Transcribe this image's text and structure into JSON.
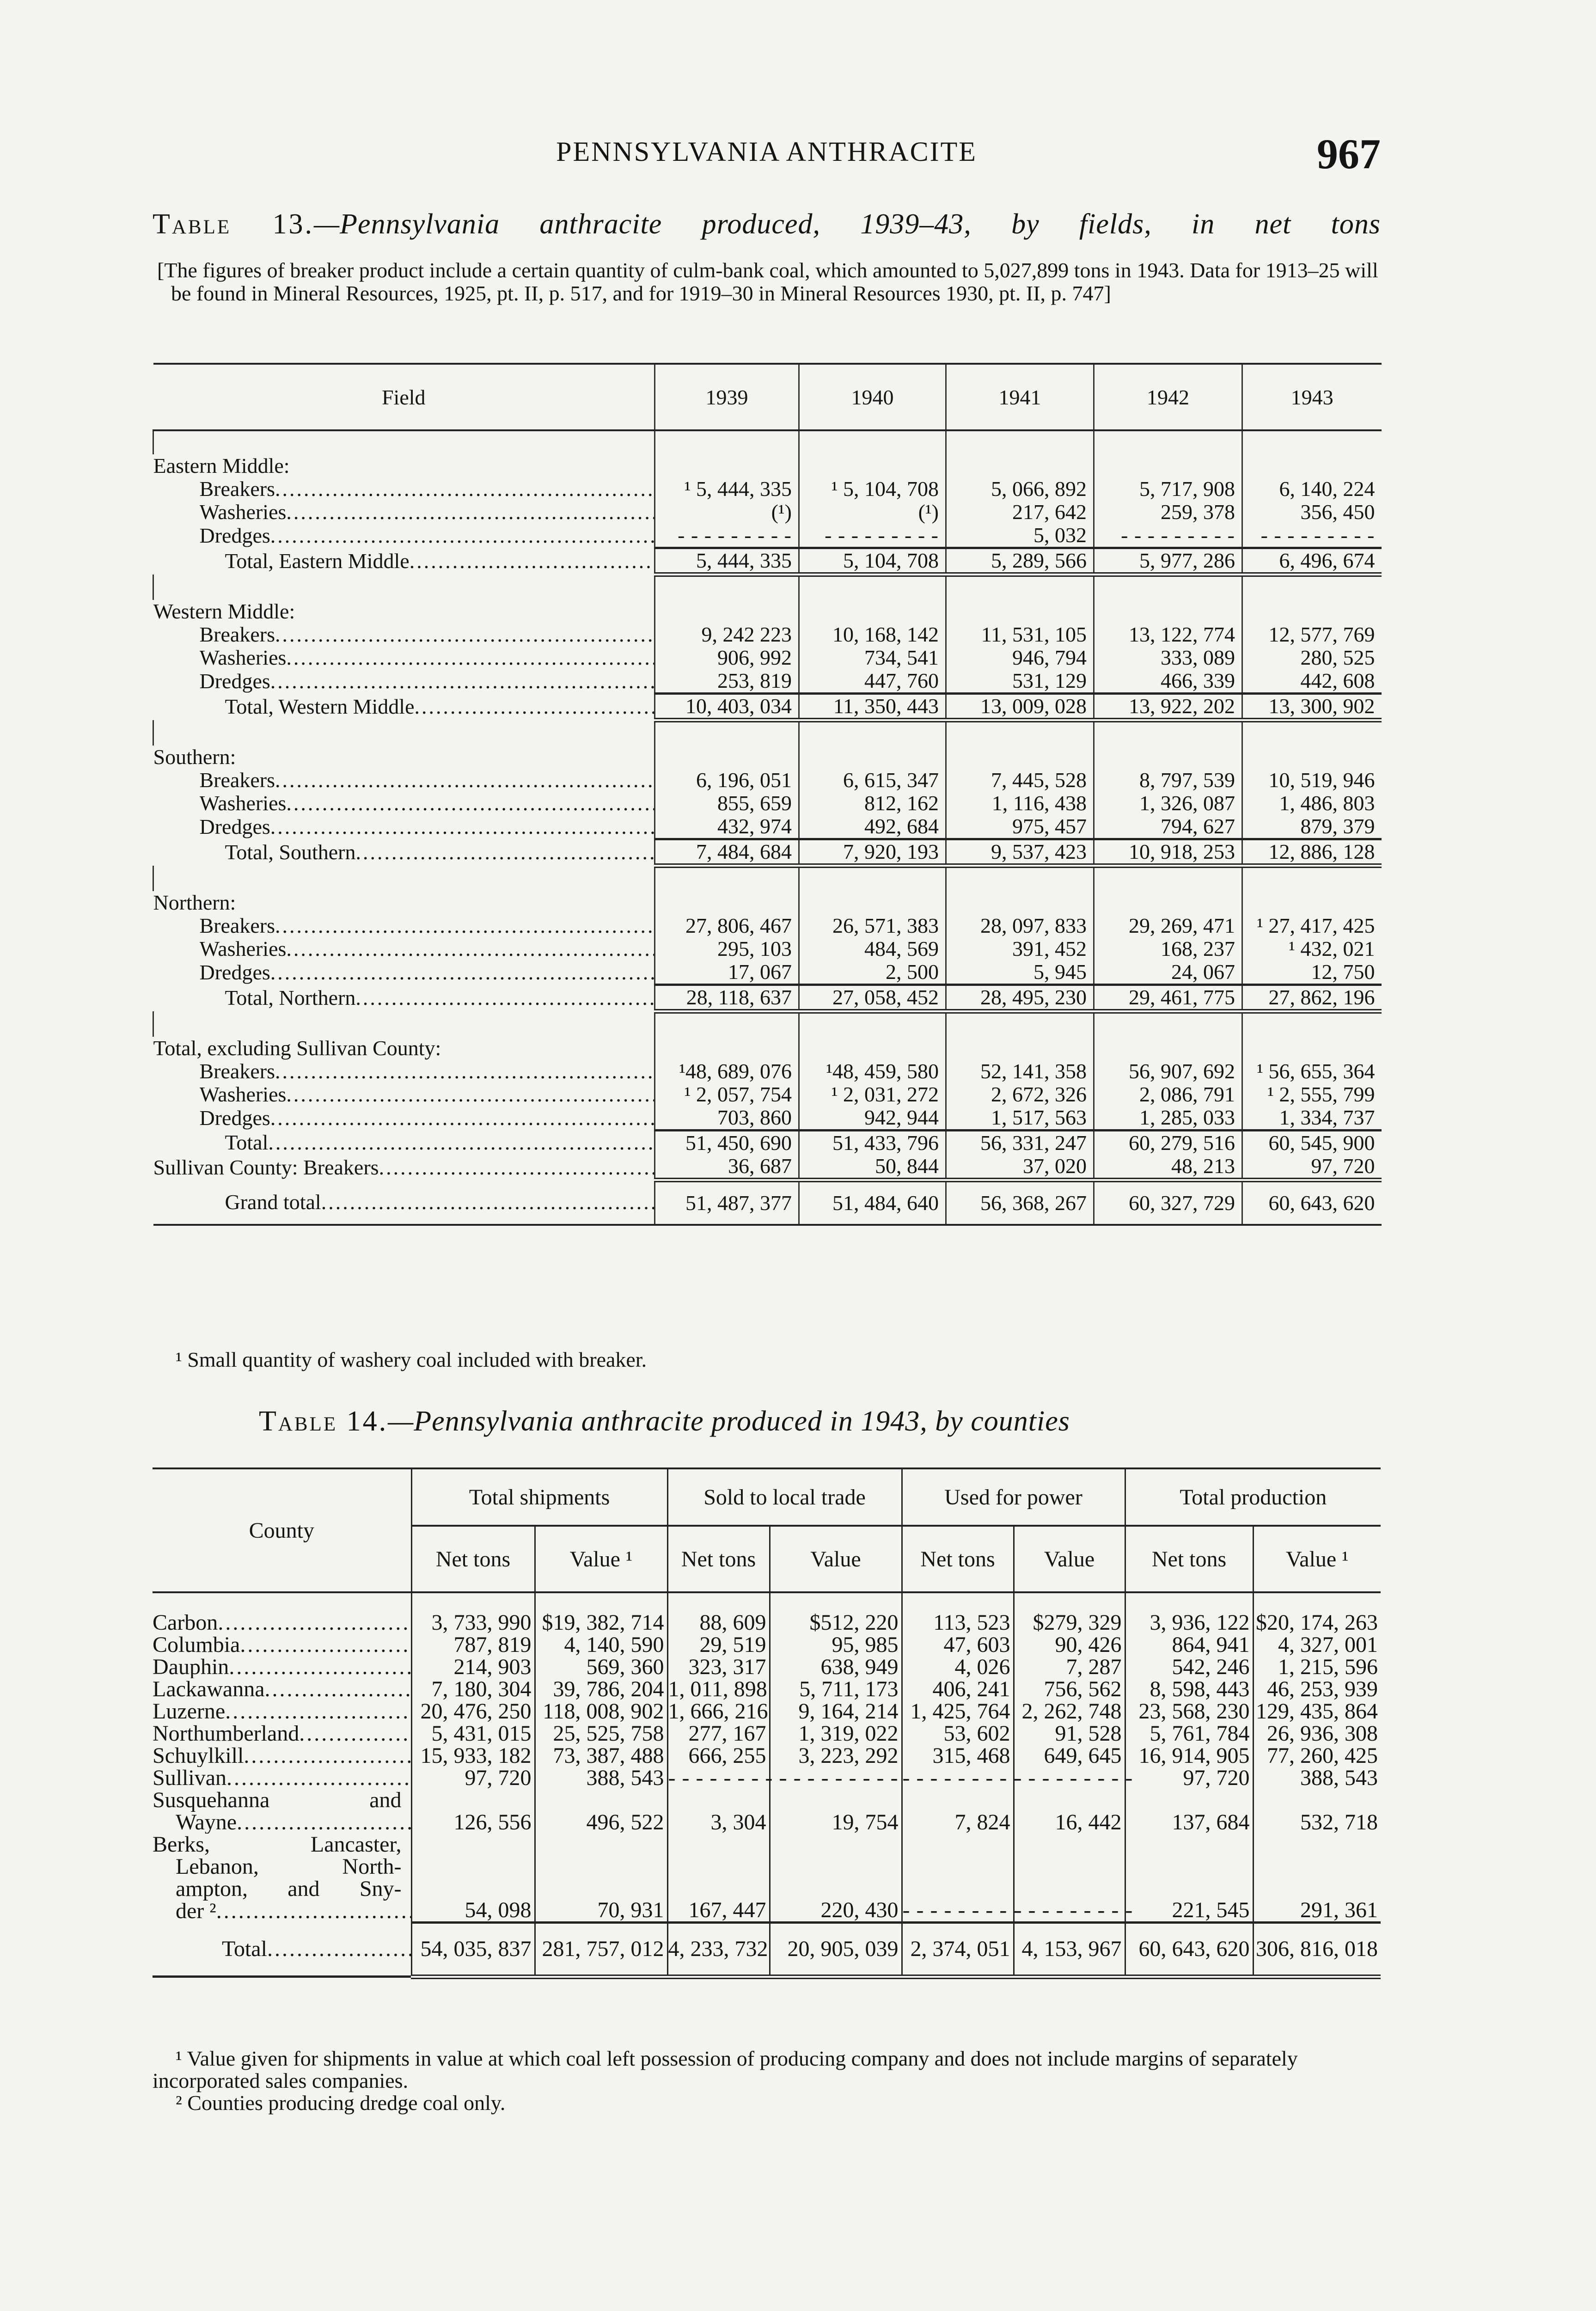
{
  "header": {
    "running_title": "PENNSYLVANIA ANTHRACITE",
    "page_number": "967"
  },
  "table13": {
    "label": "Table 13.",
    "title": "—Pennsylvania anthracite produced, 1939–43, by fields, in net tons",
    "note": "[The figures of breaker product include a certain quantity of culm-bank coal, which amounted to 5,027,899 tons in 1943. Data for 1913–25 will be found in Mineral Resources, 1925, pt. II, p. 517, and for 1919–30 in Mineral Resources 1930, pt. II, p. 747]",
    "columns": [
      "Field",
      "1939",
      "1940",
      "1941",
      "1942",
      "1943"
    ],
    "groups": [
      {
        "label": "Eastern Middle:",
        "rows": [
          {
            "label": "Breakers",
            "values": [
              "¹ 5, 444, 335",
              "¹ 5, 104, 708",
              "5, 066, 892",
              "5, 717, 908",
              "6, 140, 224"
            ]
          },
          {
            "label": "Washeries",
            "values": [
              "(¹)",
              "(¹)",
              "217, 642",
              "259, 378",
              "356, 450"
            ]
          },
          {
            "label": "Dredges",
            "values": [
              null,
              null,
              "5, 032",
              null,
              null
            ]
          }
        ],
        "total": {
          "label": "Total, Eastern Middle",
          "values": [
            "5, 444, 335",
            "5, 104, 708",
            "5, 289, 566",
            "5, 977, 286",
            "6, 496, 674"
          ]
        }
      },
      {
        "label": "Western Middle:",
        "rows": [
          {
            "label": "Breakers",
            "values": [
              "9, 242 223",
              "10, 168, 142",
              "11, 531, 105",
              "13, 122, 774",
              "12, 577, 769"
            ]
          },
          {
            "label": "Washeries",
            "values": [
              "906, 992",
              "734, 541",
              "946, 794",
              "333, 089",
              "280, 525"
            ]
          },
          {
            "label": "Dredges",
            "values": [
              "253, 819",
              "447, 760",
              "531, 129",
              "466, 339",
              "442, 608"
            ]
          }
        ],
        "total": {
          "label": "Total, Western Middle",
          "values": [
            "10, 403, 034",
            "11, 350, 443",
            "13, 009, 028",
            "13, 922, 202",
            "13, 300, 902"
          ]
        }
      },
      {
        "label": "Southern:",
        "rows": [
          {
            "label": "Breakers",
            "values": [
              "6, 196, 051",
              "6, 615, 347",
              "7, 445, 528",
              "8, 797, 539",
              "10, 519, 946"
            ]
          },
          {
            "label": "Washeries",
            "values": [
              "855, 659",
              "812, 162",
              "1, 116, 438",
              "1, 326, 087",
              "1, 486, 803"
            ]
          },
          {
            "label": "Dredges",
            "values": [
              "432, 974",
              "492, 684",
              "975, 457",
              "794, 627",
              "879, 379"
            ]
          }
        ],
        "total": {
          "label": "Total, Southern",
          "values": [
            "7, 484, 684",
            "7, 920, 193",
            "9, 537, 423",
            "10, 918, 253",
            "12, 886, 128"
          ]
        }
      },
      {
        "label": "Northern:",
        "rows": [
          {
            "label": "Breakers",
            "values": [
              "27, 806, 467",
              "26, 571, 383",
              "28, 097, 833",
              "29, 269, 471",
              "¹ 27, 417, 425"
            ]
          },
          {
            "label": "Washeries",
            "values": [
              "295, 103",
              "484, 569",
              "391, 452",
              "168, 237",
              "¹ 432, 021"
            ]
          },
          {
            "label": "Dredges",
            "values": [
              "17, 067",
              "2, 500",
              "5, 945",
              "24, 067",
              "12, 750"
            ]
          }
        ],
        "total": {
          "label": "Total, Northern",
          "values": [
            "28, 118, 637",
            "27, 058, 452",
            "28, 495, 230",
            "29, 461, 775",
            "27, 862, 196"
          ]
        }
      },
      {
        "label": "Total, excluding Sullivan County:",
        "rows": [
          {
            "label": "Breakers",
            "values": [
              "¹48, 689, 076",
              "¹48, 459, 580",
              "52, 141, 358",
              "56, 907, 692",
              "¹ 56, 655, 364"
            ]
          },
          {
            "label": "Washeries",
            "values": [
              "¹ 2, 057, 754",
              "¹ 2, 031, 272",
              "2, 672, 326",
              "2, 086, 791",
              "¹ 2, 555, 799"
            ]
          },
          {
            "label": "Dredges",
            "values": [
              "703, 860",
              "942, 944",
              "1, 517, 563",
              "1, 285, 033",
              "1, 334, 737"
            ]
          }
        ],
        "total": {
          "label": "Total",
          "values": [
            "51, 450, 690",
            "51, 433, 796",
            "56, 331, 247",
            "60, 279, 516",
            "60, 545, 900"
          ]
        },
        "after_total": {
          "label": "Sullivan County: Breakers",
          "values": [
            "36, 687",
            "50, 844",
            "37, 020",
            "48, 213",
            "97, 720"
          ]
        }
      }
    ],
    "grand_total": {
      "label": "Grand total",
      "values": [
        "51, 487, 377",
        "51, 484, 640",
        "56, 368, 267",
        "60, 327, 729",
        "60, 643, 620"
      ]
    },
    "footnote": "¹ Small quantity of washery coal included with breaker."
  },
  "table14": {
    "label": "Table 14.",
    "title": "—Pennsylvania anthracite produced in 1943, by counties",
    "county_header": "County",
    "groups": [
      "Total shipments",
      "Sold to local trade",
      "Used for power",
      "Total production"
    ],
    "subheaders": [
      "Net tons",
      "Value ¹",
      "Net tons",
      "Value",
      "Net tons",
      "Value",
      "Net tons",
      "Value ¹"
    ],
    "rows": [
      {
        "county": "Carbon",
        "values": [
          "3, 733, 990",
          "$19, 382, 714",
          "88, 609",
          "$512, 220",
          "113, 523",
          "$279, 329",
          "3, 936, 122",
          "$20, 174, 263"
        ]
      },
      {
        "county": "Columbia",
        "values": [
          "787, 819",
          "4, 140, 590",
          "29, 519",
          "95, 985",
          "47, 603",
          "90, 426",
          "864, 941",
          "4, 327, 001"
        ]
      },
      {
        "county": "Dauphin",
        "values": [
          "214, 903",
          "569, 360",
          "323, 317",
          "638, 949",
          "4, 026",
          "7, 287",
          "542, 246",
          "1, 215, 596"
        ]
      },
      {
        "county": "Lackawanna",
        "values": [
          "7, 180, 304",
          "39, 786, 204",
          "1, 011, 898",
          "5, 711, 173",
          "406, 241",
          "756, 562",
          "8, 598, 443",
          "46, 253, 939"
        ]
      },
      {
        "county": "Luzerne",
        "values": [
          "20, 476, 250",
          "118, 008, 902",
          "1, 666, 216",
          "9, 164, 214",
          "1, 425, 764",
          "2, 262, 748",
          "23, 568, 230",
          "129, 435, 864"
        ]
      },
      {
        "county": "Northumberland",
        "values": [
          "5, 431, 015",
          "25, 525, 758",
          "277, 167",
          "1, 319, 022",
          "53, 602",
          "91, 528",
          "5, 761, 784",
          "26, 936, 308"
        ]
      },
      {
        "county": "Schuylkill",
        "values": [
          "15, 933, 182",
          "73, 387, 488",
          "666, 255",
          "3, 223, 292",
          "315, 468",
          "649, 645",
          "16, 914, 905",
          "77, 260, 425"
        ]
      },
      {
        "county": "Sullivan",
        "values": [
          "97, 720",
          "388, 543",
          null,
          null,
          null,
          null,
          "97, 720",
          "388, 543"
        ]
      },
      {
        "county_lines": [
          "Susquehanna and",
          "Wayne"
        ],
        "values": [
          "126, 556",
          "496, 522",
          "3, 304",
          "19, 754",
          "7, 824",
          "16, 442",
          "137, 684",
          "532, 718"
        ]
      },
      {
        "county_lines": [
          "Berks, Lancaster,",
          "Lebanon, North-",
          "ampton, and Sny-",
          "der ²"
        ],
        "values": [
          "54, 098",
          "70, 931",
          "167, 447",
          "220, 430",
          null,
          null,
          "221, 545",
          "291, 361"
        ]
      }
    ],
    "total": {
      "label": "Total",
      "values": [
        "54, 035, 837",
        "281, 757, 012",
        "4, 233, 732",
        "20, 905, 039",
        "2, 374, 051",
        "4, 153, 967",
        "60, 643, 620",
        "306, 816, 018"
      ]
    },
    "footnotes": [
      "¹ Value given for shipments in value at which coal left possession of producing company and does not include margins of separately incorporated sales companies.",
      "² Counties producing dredge coal only."
    ]
  }
}
